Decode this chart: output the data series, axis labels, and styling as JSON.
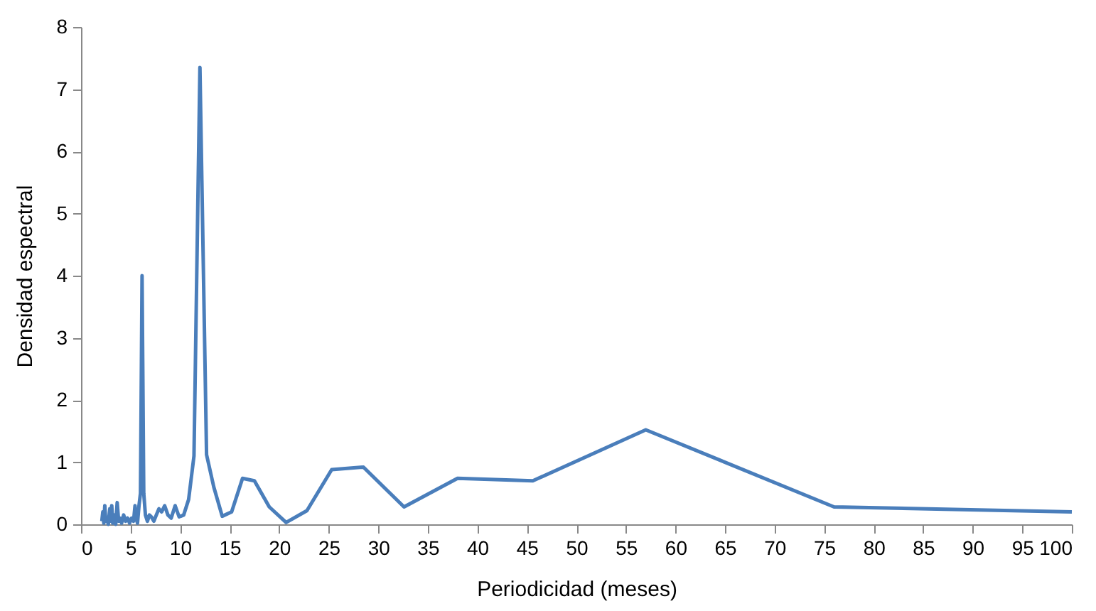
{
  "chart_data": {
    "type": "line",
    "xlabel": "Periodicidad (meses)",
    "ylabel": "Densidad espectral",
    "x": [
      2.1,
      2.2,
      2.3,
      2.4,
      2.5,
      2.6,
      2.75,
      2.9,
      3.0,
      3.1,
      3.2,
      3.35,
      3.5,
      3.65,
      3.8,
      3.95,
      4.1,
      4.3,
      4.5,
      4.7,
      4.9,
      5.1,
      5.3,
      5.45,
      5.56,
      5.7,
      5.85,
      6.0,
      6.16,
      6.33,
      6.5,
      6.7,
      6.9,
      7.1,
      7.35,
      7.6,
      7.86,
      8.14,
      8.44,
      8.77,
      9.1,
      9.5,
      9.9,
      10.36,
      10.86,
      11.4,
      12.0,
      12.67,
      13.4,
      14.25,
      15.2,
      16.3,
      17.5,
      19.0,
      20.7,
      22.8,
      25.3,
      28.5,
      32.6,
      38.0,
      45.6,
      57.0,
      76.0,
      100.0
    ],
    "series": [
      {
        "color": "#4a7ebb",
        "values": [
          0.05,
          0.2,
          0.02,
          0.3,
          0.05,
          0.1,
          0.0,
          0.25,
          0.05,
          0.3,
          0.02,
          0.15,
          0.0,
          0.35,
          0.05,
          0.1,
          0.02,
          0.15,
          0.05,
          0.1,
          0.02,
          0.1,
          0.05,
          0.3,
          0.1,
          0.02,
          0.3,
          0.5,
          4.0,
          0.5,
          0.15,
          0.05,
          0.15,
          0.12,
          0.05,
          0.15,
          0.25,
          0.2,
          0.3,
          0.15,
          0.1,
          0.3,
          0.12,
          0.15,
          0.4,
          1.1,
          7.35,
          1.12,
          0.6,
          0.13,
          0.2,
          0.74,
          0.7,
          0.28,
          0.03,
          0.22,
          0.88,
          0.92,
          0.28,
          0.74,
          0.7,
          1.52,
          0.28,
          0.2
        ]
      }
    ],
    "xlim": [
      0,
      100
    ],
    "xticks": [
      0,
      5,
      10,
      15,
      20,
      25,
      30,
      35,
      40,
      45,
      50,
      55,
      60,
      65,
      70,
      75,
      80,
      85,
      90,
      95,
      100
    ],
    "ylim": [
      0,
      8
    ],
    "yticks": [
      0,
      1,
      2,
      3,
      4,
      5,
      6,
      7,
      8
    ],
    "grid": false,
    "marker": "none",
    "line_style": "solid"
  }
}
